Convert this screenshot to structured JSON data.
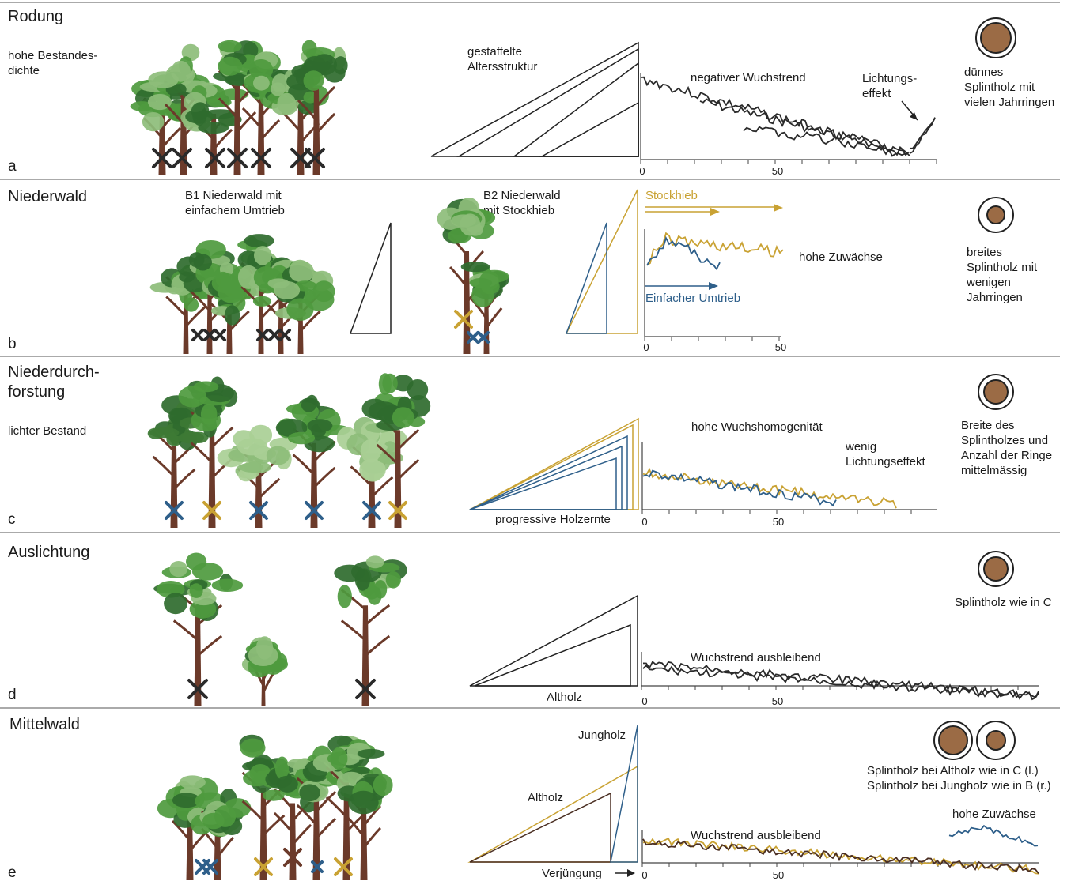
{
  "colors": {
    "old_wood": "#3a3a3a",
    "gold": "#c9a233",
    "blue": "#2e5f8a",
    "trunk": "#6b3a2a",
    "leaf_mid": "#4e9a3e",
    "leaf_dark": "#2f6b2e",
    "leaf_light": "#8dbd7a",
    "ring_fill": "#9b6b45"
  },
  "sections": [
    {
      "letter": "a",
      "title": [
        "Rodung"
      ],
      "subtitle": [
        "hohe Bestandes-",
        "dichte"
      ],
      "diagram_labels": [
        "gestaffelte",
        "Altersstruktur"
      ],
      "chart_labels": {
        "trend": "negativer Wuchstrend",
        "effect": [
          "Lichtungs-",
          "effekt"
        ]
      },
      "sapwood": [
        "dünnes",
        "Splintholz mit",
        "vielen Jahrringen"
      ]
    },
    {
      "letter": "b",
      "title": [
        "Niederwald"
      ],
      "b1": [
        "B1 Niederwald mit",
        "einfachem Umtrieb"
      ],
      "b2": [
        "B2 Niederwald",
        "mit Stockhieb"
      ],
      "chart_labels": {
        "stock": "Stockhieb",
        "simple": "Einfacher Umtrieb",
        "growth": "hohe Zuwächse"
      },
      "sapwood": [
        "breites",
        "Splintholz mit",
        "wenigen",
        "Jahrringen"
      ]
    },
    {
      "letter": "c",
      "title": [
        "Niederdurch-",
        "forstung"
      ],
      "subtitle": [
        "lichter Bestand"
      ],
      "diagram_labels": [
        "progressive Holzernte"
      ],
      "chart_labels": {
        "homog": "hohe Wuchshomogenität",
        "effect": [
          "wenig",
          "Lichtungseffekt"
        ]
      },
      "sapwood": [
        "Breite des",
        "Splintholzes und",
        "Anzahl der Ringe",
        "mittelmässig"
      ]
    },
    {
      "letter": "d",
      "title": [
        "Auslichtung"
      ],
      "diagram_labels": [
        "Altholz"
      ],
      "chart_labels": {
        "trend": "Wuchstrend ausbleibend"
      },
      "sapwood": [
        "Splintholz wie in C"
      ]
    },
    {
      "letter": "e",
      "title": [
        "Mittelwald"
      ],
      "diagram_labels": {
        "young": "Jungholz",
        "old": "Altholz",
        "regen": "Verjüngung"
      },
      "chart_labels": {
        "trend": "Wuchstrend ausbleibend",
        "growth": "hohe Zuwächse"
      },
      "sapwood": [
        "Splintholz bei Altholz wie in C (l.)",
        "Splintholz bei Jungholz wie in B (r.)"
      ]
    }
  ],
  "axis_ticks": {
    "zero": "0",
    "fifty": "50"
  }
}
